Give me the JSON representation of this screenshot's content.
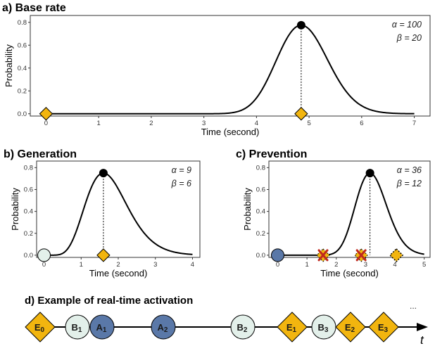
{
  "colors": {
    "diamond": "#F2B50F",
    "circle_light": "#E3F0EA",
    "circle_blue": "#5A78A8",
    "prevention_x": "#C0281E",
    "curve": "#000000"
  },
  "chart_data": [
    {
      "id": "a",
      "type": "line",
      "title": "a) Base rate",
      "xlabel": "Time (second)",
      "ylabel": "Probability",
      "xlim": [
        -0.3,
        7.3
      ],
      "ylim": [
        -0.02,
        0.86
      ],
      "xticks": [
        "0",
        "1",
        "2",
        "3",
        "4",
        "5",
        "6",
        "7"
      ],
      "yticks": [
        "0.0",
        "0.2",
        "0.4",
        "0.6",
        "0.8"
      ],
      "params": [
        "α = 100",
        "β =  20"
      ],
      "curve": {
        "alpha": 100,
        "beta": 20,
        "xmax": 7
      },
      "peak": {
        "x": 4.85,
        "y": 0.775
      },
      "markers": [
        {
          "shape": "diamond",
          "x": 0
        },
        {
          "shape": "diamond",
          "x": 4.85
        }
      ]
    },
    {
      "id": "b",
      "type": "line",
      "title": "b) Generation",
      "xlabel": "Time (second)",
      "ylabel": "Probability",
      "xlim": [
        -0.2,
        4.2
      ],
      "ylim": [
        -0.02,
        0.86
      ],
      "xticks": [
        "0",
        "1",
        "2",
        "3",
        "4"
      ],
      "yticks": [
        "0.0",
        "0.2",
        "0.4",
        "0.6",
        "0.8"
      ],
      "params": [
        "α = 9",
        "β = 6"
      ],
      "curve": {
        "alpha": 9,
        "beta": 6,
        "xmax": 4
      },
      "peak": {
        "x": 1.6,
        "y": 0.75
      },
      "markers": [
        {
          "shape": "circle_light",
          "x": 0
        },
        {
          "shape": "diamond",
          "x": 1.6
        }
      ]
    },
    {
      "id": "c",
      "type": "line",
      "title": "c) Prevention",
      "xlabel": "Time (second)",
      "ylabel": "Probability",
      "xlim": [
        -0.3,
        5.2
      ],
      "ylim": [
        -0.02,
        0.86
      ],
      "xticks": [
        "0",
        "1",
        "2",
        "3",
        "4",
        "5"
      ],
      "yticks": [
        "0.0",
        "0.2",
        "0.4",
        "0.6",
        "0.8"
      ],
      "params": [
        "α = 36",
        "β = 12"
      ],
      "curve": {
        "alpha": 36,
        "beta": 12,
        "xmax": 5
      },
      "peak": {
        "x": 3.15,
        "y": 0.75
      },
      "markers": [
        {
          "shape": "circle_blue",
          "x": 0
        },
        {
          "shape": "diamond_x",
          "x": 1.55
        },
        {
          "shape": "diamond_x",
          "x": 2.85
        },
        {
          "shape": "diamond_dotted",
          "x": 4.05
        }
      ]
    }
  ],
  "timeline": {
    "title": "d) Example of real-time activation",
    "ellipsis": "...",
    "axis_label": "t",
    "nodes": [
      {
        "shape": "diamond",
        "label": "E",
        "sub": "0"
      },
      {
        "shape": "circle_light",
        "label": "B",
        "sub": "1"
      },
      {
        "shape": "circle_blue",
        "label": "A",
        "sub": "1"
      },
      {
        "shape": "circle_blue",
        "label": "A",
        "sub": "2"
      },
      {
        "shape": "circle_light",
        "label": "B",
        "sub": "2"
      },
      {
        "shape": "diamond",
        "label": "E",
        "sub": "1"
      },
      {
        "shape": "circle_light",
        "label": "B",
        "sub": "3"
      },
      {
        "shape": "diamond",
        "label": "E",
        "sub": "2"
      },
      {
        "shape": "diamond",
        "label": "E",
        "sub": "3"
      }
    ]
  }
}
